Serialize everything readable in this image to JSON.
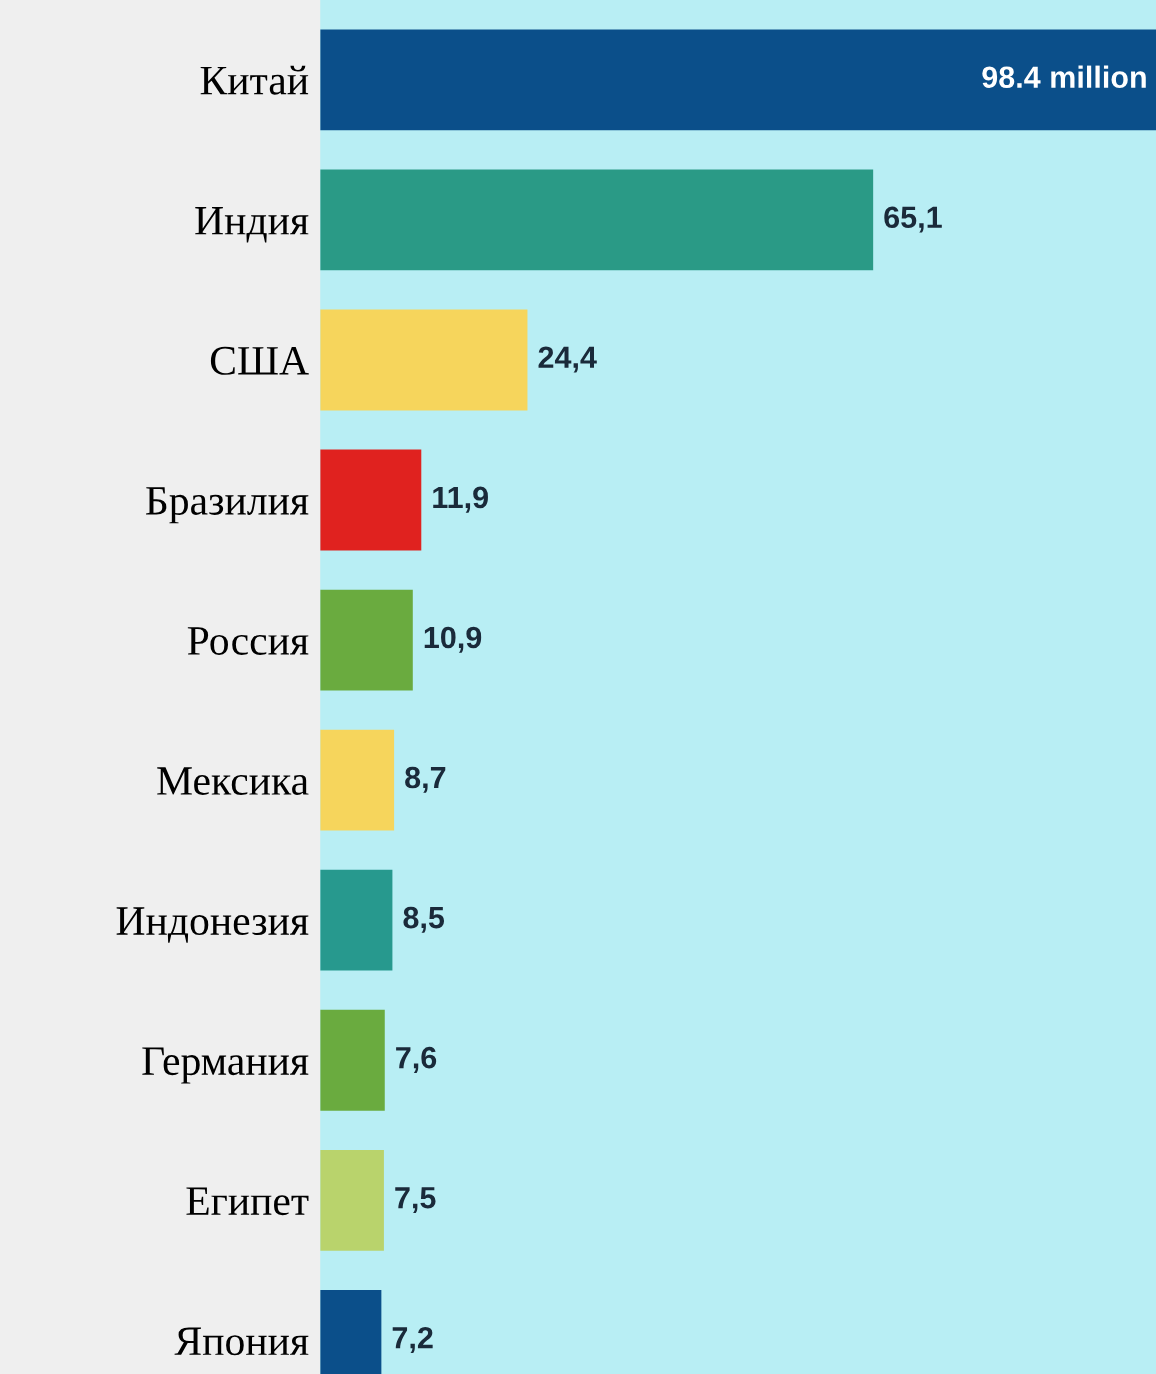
{
  "chart_data": {
    "type": "bar",
    "orientation": "horizontal",
    "categories": [
      "Китай",
      "Индия",
      "США",
      "Бразилия",
      "Россия",
      "Мексика",
      "Индонезия",
      "Германия",
      "Египет",
      "Япония"
    ],
    "values": [
      98.4,
      65.1,
      24.4,
      11.9,
      10.9,
      8.7,
      8.5,
      7.6,
      7.5,
      7.2
    ],
    "value_labels": [
      "98.4 million",
      "65,1",
      "24,4",
      "11,9",
      "10,9",
      "8,7",
      "8,5",
      "7,6",
      "7,5",
      "7,2"
    ],
    "colors": [
      "#0b4f8a",
      "#2a9a86",
      "#f6d55c",
      "#e0221f",
      "#6aab3f",
      "#f6d55c",
      "#27998e",
      "#6aab3f",
      "#b9d36c",
      "#0b4f8a"
    ],
    "grid": false,
    "legend": false
  }
}
